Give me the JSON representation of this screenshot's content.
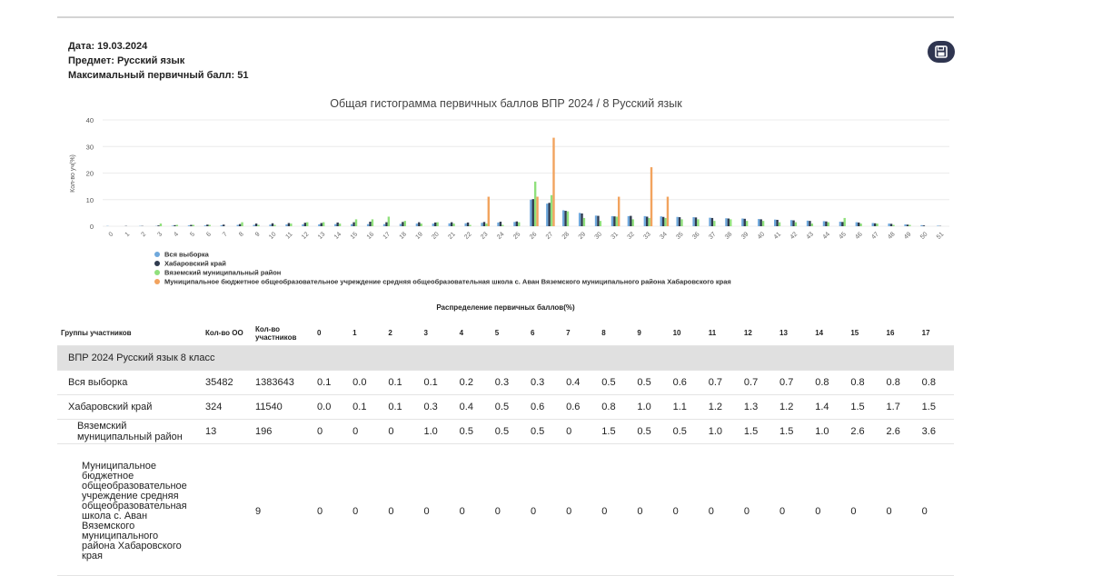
{
  "header": {
    "lines": [
      "Дата: 19.03.2024",
      "Предмет: Русский язык",
      "Максимальный первичный балл: 51"
    ]
  },
  "chart_data": {
    "type": "bar",
    "title": "Общая гистограмма первичных баллов ВПР 2024 / 8 Русский язык",
    "y_label": "Кол-во уч(%)",
    "categories": [
      "0",
      "1",
      "2",
      "3",
      "4",
      "5",
      "6",
      "7",
      "8",
      "9",
      "10",
      "11",
      "12",
      "13",
      "14",
      "15",
      "16",
      "17",
      "18",
      "19",
      "20",
      "21",
      "22",
      "23",
      "24",
      "25",
      "26",
      "27",
      "28",
      "29",
      "30",
      "31",
      "32",
      "33",
      "34",
      "35",
      "36",
      "37",
      "38",
      "39",
      "40",
      "41",
      "42",
      "43",
      "44",
      "45",
      "46",
      "47",
      "48",
      "49",
      "50",
      "51"
    ],
    "ylim": [
      0,
      40
    ],
    "yticks": [
      0,
      10,
      20,
      30,
      40
    ],
    "legend": "bottom-left",
    "series": [
      {
        "name": "Вся выборка",
        "color": "#6fa8dc",
        "values": [
          0.1,
          0.0,
          0.1,
          0.1,
          0.2,
          0.3,
          0.3,
          0.4,
          0.5,
          0.5,
          0.6,
          0.7,
          0.7,
          0.7,
          0.8,
          0.8,
          0.8,
          0.8,
          0.9,
          1.0,
          1.0,
          1.1,
          1.1,
          1.3,
          1.4,
          1.6,
          10.0,
          8.5,
          6.0,
          5.0,
          4.0,
          3.8,
          3.8,
          3.8,
          3.7,
          3.5,
          3.4,
          3.2,
          3.0,
          2.9,
          2.7,
          2.5,
          2.3,
          2.1,
          1.9,
          1.7,
          1.5,
          1.2,
          1.0,
          0.7,
          0.4,
          0.2
        ]
      },
      {
        "name": "Хабаровский край",
        "color": "#2f3b4f",
        "values": [
          0.0,
          0.1,
          0.1,
          0.3,
          0.4,
          0.5,
          0.6,
          0.6,
          0.8,
          1.0,
          1.1,
          1.2,
          1.3,
          1.2,
          1.4,
          1.5,
          1.7,
          1.5,
          1.6,
          1.5,
          1.4,
          1.5,
          1.4,
          1.6,
          1.7,
          1.8,
          10.2,
          8.8,
          5.8,
          4.8,
          3.9,
          3.7,
          3.9,
          3.6,
          3.5,
          3.4,
          3.3,
          3.1,
          2.9,
          2.8,
          2.6,
          2.4,
          2.2,
          2.0,
          1.8,
          1.6,
          1.4,
          1.1,
          0.9,
          0.6,
          0.3,
          0.1
        ]
      },
      {
        "name": "Вяземский муниципальный район",
        "color": "#90e07c",
        "values": [
          0,
          0,
          0,
          1.0,
          0.5,
          0.5,
          0.5,
          0,
          1.5,
          0.5,
          0.5,
          1.0,
          1.5,
          1.5,
          1.0,
          2.6,
          2.6,
          3.6,
          2.0,
          1.0,
          1.5,
          1.0,
          0.5,
          1.0,
          0.5,
          1.5,
          16.8,
          11.7,
          5.6,
          3.1,
          2.0,
          3.6,
          2.6,
          3.1,
          3.1,
          2.6,
          2.6,
          2.0,
          2.6,
          2.0,
          2.0,
          1.5,
          1.5,
          1.0,
          1.5,
          3.1,
          1.0,
          1.0,
          0.5,
          0.5,
          0,
          0
        ]
      },
      {
        "name": "Муниципальное бюджетное общеобразовательное учреждение средняя общеобразовательная школа с. Аван Вяземского муниципального района Хабаровского края",
        "color": "#f2a35e",
        "values": [
          0,
          0,
          0,
          0,
          0,
          0,
          0,
          0,
          0,
          0,
          0,
          0,
          0,
          0,
          0,
          0,
          0,
          0,
          0,
          0,
          0,
          0,
          0,
          11.1,
          0,
          0,
          11.1,
          33.3,
          0,
          0,
          0,
          11.1,
          0,
          22.2,
          11.1,
          0,
          0,
          0,
          0,
          0,
          0,
          0,
          0,
          0,
          0,
          0,
          0,
          0,
          0,
          0,
          0,
          0
        ]
      }
    ]
  },
  "table": {
    "title": "Распределение первичных баллов(%)",
    "columns": [
      "Группы участников",
      "Кол-во ОО",
      "Кол-во участников",
      "0",
      "1",
      "2",
      "3",
      "4",
      "5",
      "6",
      "7",
      "8",
      "9",
      "10",
      "11",
      "12",
      "13",
      "14",
      "15",
      "16",
      "17"
    ],
    "group_row": "ВПР 2024 Русский язык 8 класс",
    "rows": [
      [
        "Вся выборка",
        "35482",
        "1383643",
        "0.1",
        "0.0",
        "0.1",
        "0.1",
        "0.2",
        "0.3",
        "0.3",
        "0.4",
        "0.5",
        "0.5",
        "0.6",
        "0.7",
        "0.7",
        "0.7",
        "0.8",
        "0.8",
        "0.8",
        "0.8"
      ],
      [
        "Хабаровский край",
        "324",
        "11540",
        "0.0",
        "0.1",
        "0.1",
        "0.3",
        "0.4",
        "0.5",
        "0.6",
        "0.6",
        "0.8",
        "1.0",
        "1.1",
        "1.2",
        "1.3",
        "1.2",
        "1.4",
        "1.5",
        "1.7",
        "1.5"
      ],
      [
        "Вяземский муниципальный район",
        "13",
        "196",
        "0",
        "0",
        "0",
        "1.0",
        "0.5",
        "0.5",
        "0.5",
        "0",
        "1.5",
        "0.5",
        "0.5",
        "1.0",
        "1.5",
        "1.5",
        "1.0",
        "2.6",
        "2.6",
        "3.6"
      ],
      [
        "Муниципальное бюджетное общеобразовательное учреждение средняя общеобразовательная школа с. Аван Вяземского муниципального района Хабаровского края",
        null,
        "9",
        "0",
        "0",
        "0",
        "0",
        "0",
        "0",
        "0",
        "0",
        "0",
        "0",
        "0",
        "0",
        "0",
        "0",
        "0",
        "0",
        "0",
        "0"
      ]
    ]
  }
}
